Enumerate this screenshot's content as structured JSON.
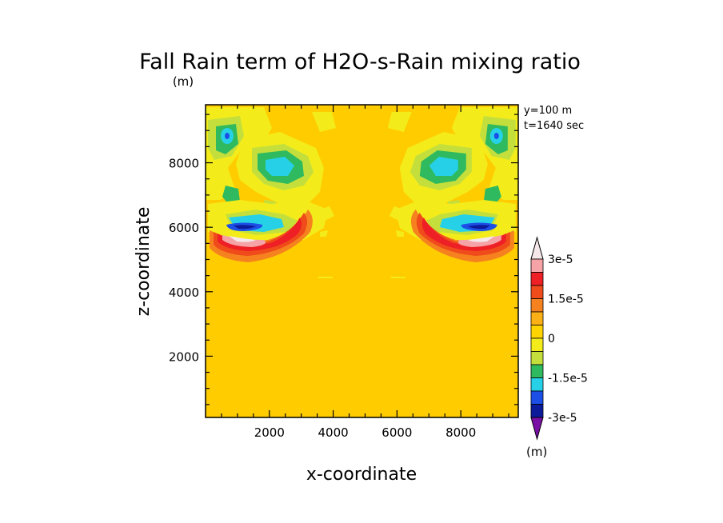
{
  "chart_data": {
    "type": "heatmap",
    "title": "Fall Rain term of H2O-s-Rain mixing ratio",
    "title_units": "(m)",
    "xlabel": "x-coordinate",
    "ylabel": "z-coordinate",
    "annotations": [
      "y=100 m",
      "t=1640 sec"
    ],
    "xlim": [
      0,
      9800
    ],
    "ylim": [
      100,
      9800
    ],
    "x_ticks": [
      2000,
      4000,
      6000,
      8000
    ],
    "y_ticks": [
      2000,
      4000,
      6000,
      8000
    ],
    "x_tick_labels": [
      "2000",
      "4000",
      "6000",
      "8000"
    ],
    "y_tick_labels": [
      "2000",
      "4000",
      "6000",
      "8000"
    ],
    "colorbar": {
      "units": "(m)",
      "labeled_ticks": [
        "3e-5",
        "1.5e-5",
        "0",
        "-1.5e-5",
        "-3e-5"
      ],
      "levels": [
        {
          "range": "> 3e-5",
          "color": "#f6e8ea"
        },
        {
          "range": "2.5e-5 to 3e-5",
          "color": "#f5a3a6"
        },
        {
          "range": "2e-5 to 2.5e-5",
          "color": "#ee1f25"
        },
        {
          "range": "1.5e-5 to 2e-5",
          "color": "#f04b1b"
        },
        {
          "range": "1e-5 to 1.5e-5",
          "color": "#f6821f"
        },
        {
          "range": "5e-6 to 1e-5",
          "color": "#fcb017"
        },
        {
          "range": "0 to 5e-6",
          "color": "#ffd400"
        },
        {
          "range": "-5e-6 to 0",
          "color": "#f3ec1a"
        },
        {
          "range": "-1e-5 to -5e-6",
          "color": "#c4df3c"
        },
        {
          "range": "-1.5e-5 to -1e-5",
          "color": "#2fba5f"
        },
        {
          "range": "-2e-5 to -1.5e-5",
          "color": "#26d1e8"
        },
        {
          "range": "-2.5e-5 to -2e-5",
          "color": "#1d4fe6"
        },
        {
          "range": "-3e-5 to -2.5e-5",
          "color": "#0c1b9a"
        },
        {
          "range": "< -3e-5",
          "color": "#7a0fa6"
        }
      ]
    },
    "background_color": "#ffcc00"
  }
}
